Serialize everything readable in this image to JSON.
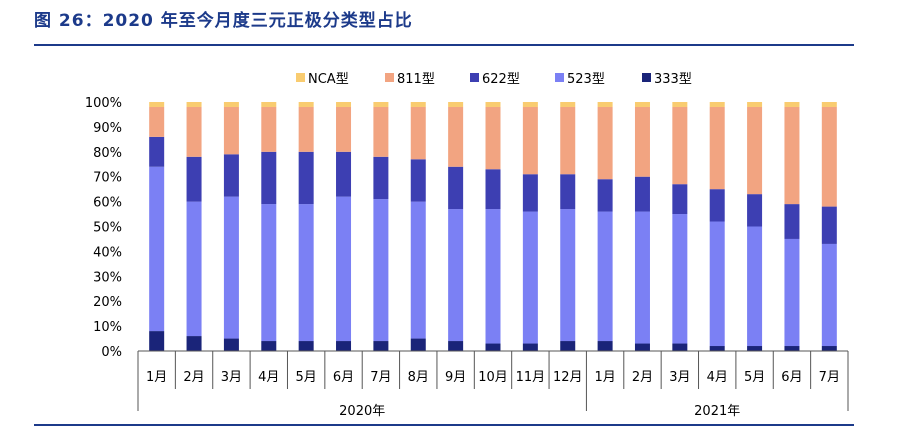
{
  "title": "图 26：2020 年至今月度三元正极分类型占比",
  "colors": {
    "title": "#1c3a8a",
    "NCA": "#f9cc70",
    "811": "#f2a481",
    "622": "#3d3fb2",
    "523": "#7b80f4",
    "333": "#1a2479"
  },
  "chart_data": {
    "type": "bar",
    "stacked": true,
    "legend_position": "top",
    "grid": false,
    "categories": [
      "1月",
      "2月",
      "3月",
      "4月",
      "5月",
      "6月",
      "7月",
      "8月",
      "9月",
      "10月",
      "11月",
      "12月",
      "1月",
      "2月",
      "3月",
      "4月",
      "5月",
      "6月",
      "7月"
    ],
    "groups": [
      {
        "label": "2020年",
        "count": 12
      },
      {
        "label": "2021年",
        "count": 7
      }
    ],
    "y_ticks": [
      "0%",
      "10%",
      "20%",
      "30%",
      "40%",
      "50%",
      "60%",
      "70%",
      "80%",
      "90%",
      "100%"
    ],
    "ylim": [
      0,
      100
    ],
    "series": [
      {
        "name": "333型",
        "key": "333",
        "values": [
          8,
          6,
          5,
          4,
          4,
          4,
          4,
          5,
          4,
          3,
          3,
          4,
          4,
          3,
          3,
          2,
          2,
          2,
          2
        ]
      },
      {
        "name": "523型",
        "key": "523",
        "values": [
          66,
          54,
          57,
          55,
          55,
          58,
          57,
          55,
          53,
          54,
          53,
          53,
          52,
          53,
          52,
          50,
          48,
          43,
          41
        ]
      },
      {
        "name": "622型",
        "key": "622",
        "values": [
          12,
          18,
          17,
          21,
          21,
          18,
          17,
          17,
          17,
          16,
          15,
          14,
          13,
          14,
          12,
          13,
          13,
          14,
          15
        ]
      },
      {
        "name": "811型",
        "key": "811",
        "values": [
          12,
          20,
          19,
          18,
          18,
          18,
          20,
          21,
          24,
          25,
          27,
          27,
          29,
          28,
          31,
          33,
          35,
          39,
          40
        ]
      },
      {
        "name": "NCA型",
        "key": "NCA",
        "values": [
          2,
          2,
          2,
          2,
          2,
          2,
          2,
          2,
          2,
          2,
          2,
          2,
          2,
          2,
          2,
          2,
          2,
          2,
          2
        ]
      }
    ],
    "legend_order": [
      "NCA",
      "811",
      "622",
      "523",
      "333"
    ]
  }
}
